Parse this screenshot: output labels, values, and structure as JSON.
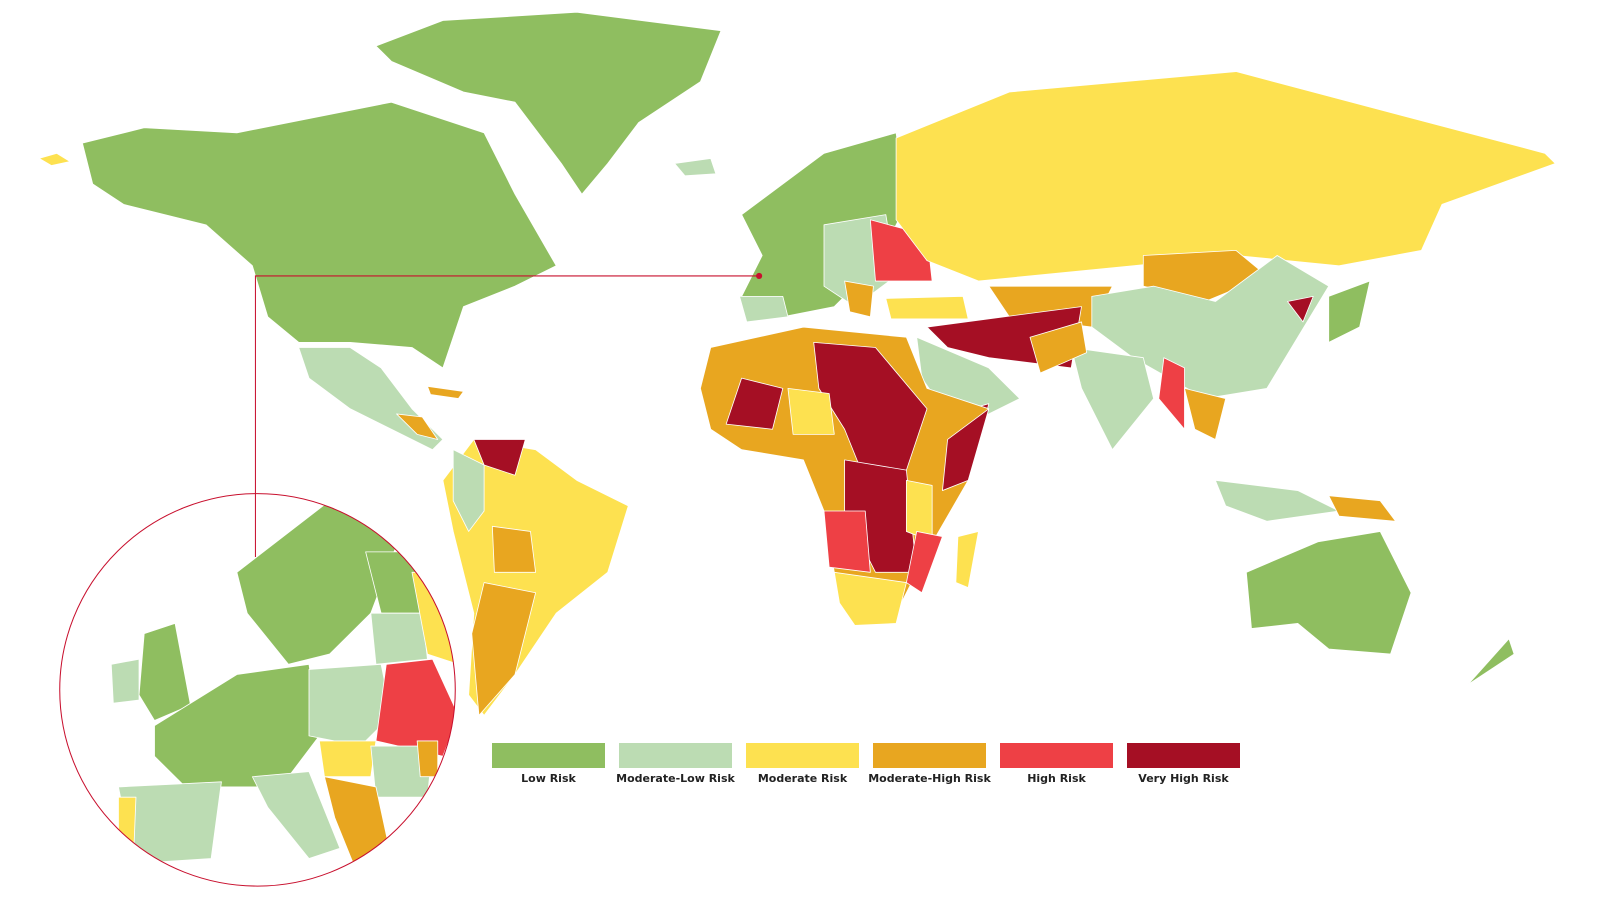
{
  "legend": {
    "items": [
      {
        "label": "Low Risk",
        "color": "#8fbe60"
      },
      {
        "label": "Moderate-Low Risk",
        "color": "#bcdcb3"
      },
      {
        "label": "Moderate Risk",
        "color": "#fde150"
      },
      {
        "label": "Moderate-High Risk",
        "color": "#e8a620"
      },
      {
        "label": "High Risk",
        "color": "#ee4045"
      },
      {
        "label": "Very High Risk",
        "color": "#a50f24"
      }
    ]
  }
}
